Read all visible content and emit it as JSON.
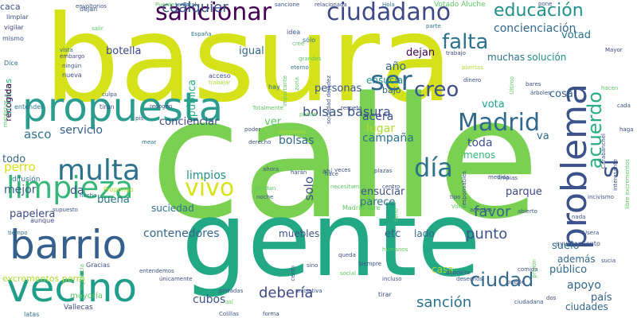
{
  "palette": {
    "background": "#ffffff",
    "dark_purple": "#440154",
    "indigo": "#3b528b",
    "blue": "#2c728e",
    "teal": "#21918c",
    "green": "#28ae80",
    "light_green": "#5ec962",
    "lime": "#addc30",
    "yellow": "#fde725"
  },
  "words": [
    {
      "text": "basura",
      "size": 150,
      "color": "#d5e21a",
      "rotate": 0
    },
    {
      "text": "calle",
      "size": 210,
      "color": "#7ad151",
      "rotate": 0
    },
    {
      "text": "gente",
      "size": 130,
      "color": "#22a884",
      "rotate": 0
    },
    {
      "text": "propuesta",
      "size": 50,
      "color": "#2a9d8f",
      "rotate": 0
    },
    {
      "text": "barrio",
      "size": 50,
      "color": "#35608d",
      "rotate": 0
    },
    {
      "text": "vecino",
      "size": 50,
      "color": "#1f9e89",
      "rotate": 0
    },
    {
      "text": "problema",
      "size": 44,
      "color": "#3b528b",
      "rotate": 90
    },
    {
      "text": "limpieza",
      "size": 38,
      "color": "#35b779",
      "rotate": 0
    },
    {
      "text": "multa",
      "size": 36,
      "color": "#2c728e",
      "rotate": 0
    },
    {
      "text": "sancionar",
      "size": 30,
      "color": "#440154",
      "rotate": 0
    },
    {
      "text": "ciudadano",
      "size": 30,
      "color": "#3e4989",
      "rotate": 0
    },
    {
      "text": "ser",
      "size": 34,
      "color": "#31688e",
      "rotate": 0
    },
    {
      "text": "creo",
      "size": 26,
      "color": "#3b528b",
      "rotate": 0
    },
    {
      "text": "Madrid",
      "size": 30,
      "color": "#31688e",
      "rotate": 0
    },
    {
      "text": "día",
      "size": 32,
      "color": "#2c728e",
      "rotate": 0
    },
    {
      "text": "vivo",
      "size": 30,
      "color": "#d8e219",
      "rotate": 0
    },
    {
      "text": "sí",
      "size": 30,
      "color": "#3b528b",
      "rotate": 90
    },
    {
      "text": "acuerdo",
      "size": 24,
      "color": "#28ae80",
      "rotate": 90
    },
    {
      "text": "falta",
      "size": 26,
      "color": "#2c728e",
      "rotate": 0
    },
    {
      "text": "educación",
      "size": 22,
      "color": "#21918c",
      "rotate": 0
    },
    {
      "text": "cualquier",
      "size": 18,
      "color": "#3b528b",
      "rotate": 0
    },
    {
      "text": "concienciación",
      "size": 14,
      "color": "#31688e",
      "rotate": 0
    },
    {
      "text": "votad",
      "size": 13,
      "color": "#2c728e",
      "rotate": 0
    },
    {
      "text": "dejan",
      "size": 13,
      "color": "#440154",
      "rotate": 0
    },
    {
      "text": "botella",
      "size": 13,
      "color": "#3e4989",
      "rotate": 0
    },
    {
      "text": "igual",
      "size": 13,
      "color": "#31688e",
      "rotate": 0
    },
    {
      "text": "muchas",
      "size": 12,
      "color": "#2c728e",
      "rotate": 0
    },
    {
      "text": "solución",
      "size": 12,
      "color": "#21918c",
      "rotate": 0
    },
    {
      "text": "año",
      "size": 14,
      "color": "#31688e",
      "rotate": 0
    },
    {
      "text": "bajo",
      "size": 11,
      "color": "#31688e",
      "rotate": 0
    },
    {
      "text": "ensucia",
      "size": 12,
      "color": "#21918c",
      "rotate": 0
    },
    {
      "text": "personas",
      "size": 13,
      "color": "#3b528b",
      "rotate": 0
    },
    {
      "text": "pública",
      "size": 13,
      "color": "#28ae80",
      "rotate": 90
    },
    {
      "text": "bolsas basura",
      "size": 16,
      "color": "#3b528b",
      "rotate": 0
    },
    {
      "text": "servicio",
      "size": 14,
      "color": "#35608d",
      "rotate": 0
    },
    {
      "text": "concienciar",
      "size": 13,
      "color": "#3e4989",
      "rotate": 0
    },
    {
      "text": "asco",
      "size": 15,
      "color": "#2c728e",
      "rotate": 0
    },
    {
      "text": "ver",
      "size": 13,
      "color": "#5ec962",
      "rotate": 0
    },
    {
      "text": "bolsas",
      "size": 14,
      "color": "#31688e",
      "rotate": 0
    },
    {
      "text": "acera",
      "size": 14,
      "color": "#3b528b",
      "rotate": 0
    },
    {
      "text": "lugar",
      "size": 14,
      "color": "#addc30",
      "rotate": 0
    },
    {
      "text": "campaña",
      "size": 14,
      "color": "#2c728e",
      "rotate": 0
    },
    {
      "text": "toda",
      "size": 14,
      "color": "#3b528b",
      "rotate": 0
    },
    {
      "text": "menos",
      "size": 12,
      "color": "#35b779",
      "rotate": 0
    },
    {
      "text": "vota",
      "size": 13,
      "color": "#1fa187",
      "rotate": 0
    },
    {
      "text": "cosa",
      "size": 13,
      "color": "#35608d",
      "rotate": 0
    },
    {
      "text": "va",
      "size": 13,
      "color": "#31688e",
      "rotate": 0
    },
    {
      "text": "perro",
      "size": 15,
      "color": "#d8e219",
      "rotate": 0
    },
    {
      "text": "mejor",
      "size": 14,
      "color": "#35608d",
      "rotate": 0
    },
    {
      "text": "da",
      "size": 14,
      "color": "#3b528b",
      "rotate": 0
    },
    {
      "text": "buena",
      "size": 13,
      "color": "#2c728e",
      "rotate": 0
    },
    {
      "text": "limpios",
      "size": 14,
      "color": "#21918c",
      "rotate": 0
    },
    {
      "text": "solo",
      "size": 15,
      "color": "#3b528b",
      "rotate": 90
    },
    {
      "text": "ensuciar",
      "size": 13,
      "color": "#3b528b",
      "rotate": 0
    },
    {
      "text": "parece",
      "size": 13,
      "color": "#2c728e",
      "rotate": 0
    },
    {
      "text": "parque",
      "size": 13,
      "color": "#3e4989",
      "rotate": 0
    },
    {
      "text": "favor",
      "size": 18,
      "color": "#31688e",
      "rotate": 0
    },
    {
      "text": "punto",
      "size": 18,
      "color": "#3b528b",
      "rotate": 0
    },
    {
      "text": "ciudad",
      "size": 24,
      "color": "#31688e",
      "rotate": 0
    },
    {
      "text": "apoyo",
      "size": 14,
      "color": "#31688e",
      "rotate": 0
    },
    {
      "text": "además",
      "size": 12,
      "color": "#31688e",
      "rotate": 0
    },
    {
      "text": "público",
      "size": 13,
      "color": "#31688e",
      "rotate": 0
    },
    {
      "text": "suelo",
      "size": 13,
      "color": "#2c728e",
      "rotate": 0
    },
    {
      "text": "país",
      "size": 13,
      "color": "#35608d",
      "rotate": 0
    },
    {
      "text": "papelera",
      "size": 13,
      "color": "#3e4989",
      "rotate": 0
    },
    {
      "text": "suciedad",
      "size": 12,
      "color": "#2c728e",
      "rotate": 0
    },
    {
      "text": "contenedores",
      "size": 14,
      "color": "#31688e",
      "rotate": 0
    },
    {
      "text": "muebles",
      "size": 12,
      "color": "#3b528b",
      "rotate": 0
    },
    {
      "text": "etc",
      "size": 13,
      "color": "#35608d",
      "rotate": 0
    },
    {
      "text": "lado",
      "size": 12,
      "color": "#31688e",
      "rotate": 0
    },
    {
      "text": "casa",
      "size": 12,
      "color": "#addc30",
      "rotate": 0
    },
    {
      "text": "debería",
      "size": 18,
      "color": "#3e4989",
      "rotate": 0
    },
    {
      "text": "sanción",
      "size": 18,
      "color": "#2c728e",
      "rotate": 0
    },
    {
      "text": "cubos",
      "size": 14,
      "color": "#3b528b",
      "rotate": 0
    },
    {
      "text": "ciudades",
      "size": 12,
      "color": "#31688e",
      "rotate": 0
    },
    {
      "text": "todo",
      "size": 13,
      "color": "#31688e",
      "rotate": 0
    },
    {
      "text": "excrementos perro",
      "size": 11,
      "color": "#addc30",
      "rotate": 0
    },
    {
      "text": "mayoría",
      "size": 10,
      "color": "#5ec962",
      "rotate": 0
    },
    {
      "text": "caca",
      "size": 11,
      "color": "#3b528b",
      "rotate": 0
    },
    {
      "text": "limpiar",
      "size": 8,
      "color": "#3b528b",
      "rotate": 0
    },
    {
      "text": "vigilar",
      "size": 8,
      "color": "#3e4989",
      "rotate": 0
    },
    {
      "text": "mismo",
      "size": 8,
      "color": "#3b528b",
      "rotate": 0
    },
    {
      "text": "Dice",
      "size": 8,
      "color": "#2c728e",
      "rotate": 0
    },
    {
      "text": "incívicos",
      "size": 11,
      "color": "#35b779",
      "rotate": 90
    },
    {
      "text": "recogida",
      "size": 11,
      "color": "#440154",
      "rotate": 90
    },
    {
      "text": "entender",
      "size": 8,
      "color": "#2c728e",
      "rotate": 0
    },
    {
      "text": "difusión",
      "size": 9,
      "color": "#2c728e",
      "rotate": 0
    },
    {
      "text": "aunque",
      "size": 8,
      "color": "#3e4989",
      "rotate": 0
    },
    {
      "text": "tiempo",
      "size": 7,
      "color": "#2c728e",
      "rotate": 0
    },
    {
      "text": "Vallecas",
      "size": 9,
      "color": "#3e4989",
      "rotate": 0
    },
    {
      "text": "latas",
      "size": 8,
      "color": "#2c728e",
      "rotate": 0
    },
    {
      "text": "hecho",
      "size": 7,
      "color": "#2c728e",
      "rotate": 0
    },
    {
      "text": "Propongo",
      "size": 8,
      "color": "#addc30",
      "rotate": 0
    },
    {
      "text": "Gracias",
      "size": 8,
      "color": "#3b528b",
      "rotate": 0
    },
    {
      "text": "vigilancia",
      "size": 7,
      "color": "#5ec962",
      "rotate": 90
    },
    {
      "text": "dejan",
      "size": 8,
      "color": "#3b528b",
      "rotate": 0
    },
    {
      "text": "envoltorios",
      "size": 7,
      "color": "#3b528b",
      "rotate": 0
    },
    {
      "text": "salir",
      "size": 7,
      "color": "#5ec962",
      "rotate": 0
    },
    {
      "text": "vista",
      "size": 7,
      "color": "#2c728e",
      "rotate": 0
    },
    {
      "text": "embargo",
      "size": 7,
      "color": "#3e4989",
      "rotate": 0
    },
    {
      "text": "ningún",
      "size": 7,
      "color": "#3b528b",
      "rotate": 0
    },
    {
      "text": "nueva",
      "size": 8,
      "color": "#3b528b",
      "rotate": 0
    },
    {
      "text": "Puente",
      "size": 7,
      "color": "#5ec962",
      "rotate": 0
    },
    {
      "text": "tema",
      "size": 7,
      "color": "#31688e",
      "rotate": 0
    },
    {
      "text": "Total",
      "size": 7,
      "color": "#31688e",
      "rotate": 0
    },
    {
      "text": "España",
      "size": 7,
      "color": "#2c728e",
      "rotate": 0
    },
    {
      "text": "sancione",
      "size": 7,
      "color": "#3b528b",
      "rotate": 0
    },
    {
      "text": "relacionada",
      "size": 7,
      "color": "#3e4989",
      "rotate": 0
    },
    {
      "text": "Hola",
      "size": 7,
      "color": "#2c728e",
      "rotate": 0
    },
    {
      "text": "Votado Aluche",
      "size": 9,
      "color": "#5ec962",
      "rotate": 0
    },
    {
      "text": "pone",
      "size": 7,
      "color": "#3b528b",
      "rotate": 0
    },
    {
      "text": "idea",
      "size": 8,
      "color": "#3b528b",
      "rotate": 0
    },
    {
      "text": "sólo",
      "size": 8,
      "color": "#2c728e",
      "rotate": 0
    },
    {
      "text": "cree",
      "size": 7,
      "color": "#5ec962",
      "rotate": 0
    },
    {
      "text": "grandes",
      "size": 7,
      "color": "#5ec962",
      "rotate": 0
    },
    {
      "text": "eterno",
      "size": 7,
      "color": "#2c728e",
      "rotate": 0
    },
    {
      "text": "puertas",
      "size": 7,
      "color": "#addc30",
      "rotate": 0
    },
    {
      "text": "trabajo",
      "size": 7,
      "color": "#3e4989",
      "rotate": 0
    },
    {
      "text": "parte",
      "size": 7,
      "color": "#2c728e",
      "rotate": 0
    },
    {
      "text": "importante",
      "size": 7,
      "color": "#5ec962",
      "rotate": 90
    },
    {
      "text": "sociedad dejadez",
      "size": 7,
      "color": "#3b528b",
      "rotate": 90
    },
    {
      "text": "zona",
      "size": 7,
      "color": "#5ec962",
      "rotate": 90
    },
    {
      "text": "acceso",
      "size": 8,
      "color": "#3b528b",
      "rotate": 0
    },
    {
      "text": "trabajar",
      "size": 7,
      "color": "#addc30",
      "rotate": 0
    },
    {
      "text": "hay",
      "size": 8,
      "color": "#2c728e",
      "rotate": 0
    },
    {
      "text": "culpa",
      "size": 7,
      "color": "#3b528b",
      "rotate": 0
    },
    {
      "text": "tiran",
      "size": 8,
      "color": "#3b528b",
      "rotate": 0
    },
    {
      "text": "recogen",
      "size": 7,
      "color": "#3e4989",
      "rotate": 0
    },
    {
      "text": "Totalmente",
      "size": 7,
      "color": "#5ec962",
      "rotate": 0
    },
    {
      "text": "respeto",
      "size": 7,
      "color": "#3e4989",
      "rotate": 0
    },
    {
      "text": "necesario",
      "size": 7,
      "color": "#addc30",
      "rotate": 0
    },
    {
      "text": "puedo",
      "size": 7,
      "color": "#5ec962",
      "rotate": 0
    },
    {
      "text": "dinero",
      "size": 7,
      "color": "#3b528b",
      "rotate": 0
    },
    {
      "text": "Último",
      "size": 7,
      "color": "#5ec962",
      "rotate": 90
    },
    {
      "text": "Mayor",
      "size": 7,
      "color": "#3e4989",
      "rotate": 0
    },
    {
      "text": "bares",
      "size": 7,
      "color": "#3b528b",
      "rotate": 0
    },
    {
      "text": "árboles",
      "size": 7,
      "color": "#3b528b",
      "rotate": 0
    },
    {
      "text": "hacen",
      "size": 7,
      "color": "#5ec962",
      "rotate": 0
    },
    {
      "text": "cada",
      "size": 7,
      "color": "#3b528b",
      "rotate": 0
    },
    {
      "text": "haga",
      "size": 7,
      "color": "#3b528b",
      "rotate": 0
    },
    {
      "text": "Carabanchel",
      "size": 7,
      "color": "#3b528b",
      "rotate": 90
    },
    {
      "text": "interesante",
      "size": 7,
      "color": "#3b528b",
      "rotate": 90
    },
    {
      "text": "libre excrementos",
      "size": 7,
      "color": "#5ec962",
      "rotate": 90
    },
    {
      "text": "pis",
      "size": 7,
      "color": "#3b528b",
      "rotate": 0
    },
    {
      "text": "mear",
      "size": 7,
      "color": "#2c728e",
      "rotate": 0
    },
    {
      "text": "poder",
      "size": 7,
      "color": "#3b528b",
      "rotate": 0
    },
    {
      "text": "derecho",
      "size": 7,
      "color": "#3b528b",
      "rotate": 0
    },
    {
      "text": "ahora",
      "size": 7,
      "color": "#3b528b",
      "rotate": 0
    },
    {
      "text": "harán",
      "size": 7,
      "color": "#3b528b",
      "rotate": 0
    },
    {
      "text": "quedan",
      "size": 7,
      "color": "#5ec962",
      "rotate": 0
    },
    {
      "text": "noche",
      "size": 7,
      "color": "#3b528b",
      "rotate": 0
    },
    {
      "text": "ahí",
      "size": 8,
      "color": "#3b528b",
      "rotate": 0
    },
    {
      "text": "hace",
      "size": 7,
      "color": "#3b528b",
      "rotate": 0
    },
    {
      "text": "necesitamos",
      "size": 7,
      "color": "#5ec962",
      "rotate": 0
    },
    {
      "text": "veces",
      "size": 7,
      "color": "#3b528b",
      "rotate": 0
    },
    {
      "text": "plazas",
      "size": 7,
      "color": "#3b528b",
      "rotate": 0
    },
    {
      "text": "centro",
      "size": 7,
      "color": "#3b528b",
      "rotate": 0
    },
    {
      "text": "Madrid libre",
      "size": 8,
      "color": "#5ec962",
      "rotate": 0
    },
    {
      "text": "lleno",
      "size": 7,
      "color": "#5ec962",
      "rotate": 90
    },
    {
      "text": "responsables",
      "size": 7,
      "color": "#3b528b",
      "rotate": 90
    },
    {
      "text": "medida",
      "size": 7,
      "color": "#3b528b",
      "rotate": 0
    },
    {
      "text": "tipo",
      "size": 7,
      "color": "#3b528b",
      "rotate": 0
    },
    {
      "text": "Votado",
      "size": 7,
      "color": "#5ec962",
      "rotate": 0
    },
    {
      "text": "agentes",
      "size": 7,
      "color": "#3b528b",
      "rotate": 0
    },
    {
      "text": "limpias",
      "size": 7,
      "color": "#3b528b",
      "rotate": 0
    },
    {
      "text": "abierto",
      "size": 7,
      "color": "#3b528b",
      "rotate": 0
    },
    {
      "text": "incivismo",
      "size": 7,
      "color": "#3b528b",
      "rotate": 0
    },
    {
      "text": "nada",
      "size": 7,
      "color": "#3b528b",
      "rotate": 0
    },
    {
      "text": "Usera",
      "size": 7,
      "color": "#3b528b",
      "rotate": 0
    },
    {
      "text": "sucia",
      "size": 7,
      "color": "#3b528b",
      "rotate": 0
    },
    {
      "text": "comida",
      "size": 7,
      "color": "#3b528b",
      "rotate": 0
    },
    {
      "text": "prisión",
      "size": 7,
      "color": "#5ec962",
      "rotate": 90
    },
    {
      "text": "ayuntamiento",
      "size": 8,
      "color": "#3b528b",
      "rotate": 0
    },
    {
      "text": "puede",
      "size": 7,
      "color": "#3b528b",
      "rotate": 0
    },
    {
      "text": "dos",
      "size": 7,
      "color": "#3b528b",
      "rotate": 0
    },
    {
      "text": "ciudadana",
      "size": 7,
      "color": "#3b528b",
      "rotate": 0
    },
    {
      "text": "queda",
      "size": 7,
      "color": "#3b528b",
      "rotate": 0
    },
    {
      "text": "humanos",
      "size": 7,
      "color": "#5ec962",
      "rotate": 0
    },
    {
      "text": "Siempre",
      "size": 7,
      "color": "#3b528b",
      "rotate": 0
    },
    {
      "text": "deposita",
      "size": 7,
      "color": "#3b528b",
      "rotate": 0
    },
    {
      "text": "desechos",
      "size": 7,
      "color": "#3b528b",
      "rotate": 0
    },
    {
      "text": "social",
      "size": 7,
      "color": "#5ec962",
      "rotate": 0
    },
    {
      "text": "incluso",
      "size": 7,
      "color": "#3b528b",
      "rotate": 0
    },
    {
      "text": "sino",
      "size": 7,
      "color": "#3b528b",
      "rotate": 0
    },
    {
      "text": "cerdo",
      "size": 7,
      "color": "#3b528b",
      "rotate": 90
    },
    {
      "text": "iniciativa",
      "size": 7,
      "color": "#3b528b",
      "rotate": 0
    },
    {
      "text": "tirar",
      "size": 8,
      "color": "#3b528b",
      "rotate": 0
    },
    {
      "text": "pintadas",
      "size": 7,
      "color": "#3b528b",
      "rotate": 0
    },
    {
      "text": "únicamente",
      "size": 7,
      "color": "#3b528b",
      "rotate": 0
    },
    {
      "text": "entendemos",
      "size": 7,
      "color": "#3b528b",
      "rotate": 0
    },
    {
      "text": "así",
      "size": 7,
      "color": "#5ec962",
      "rotate": 0
    },
    {
      "text": "Colillas",
      "size": 7,
      "color": "#3b528b",
      "rotate": 0
    },
    {
      "text": "forma",
      "size": 7,
      "color": "#3b528b",
      "rotate": 0
    },
    {
      "text": "supuesto",
      "size": 7,
      "color": "#3b528b",
      "rotate": 0
    },
    {
      "text": "mantener",
      "size": 7,
      "color": "#5ec962",
      "rotate": 90
    }
  ]
}
